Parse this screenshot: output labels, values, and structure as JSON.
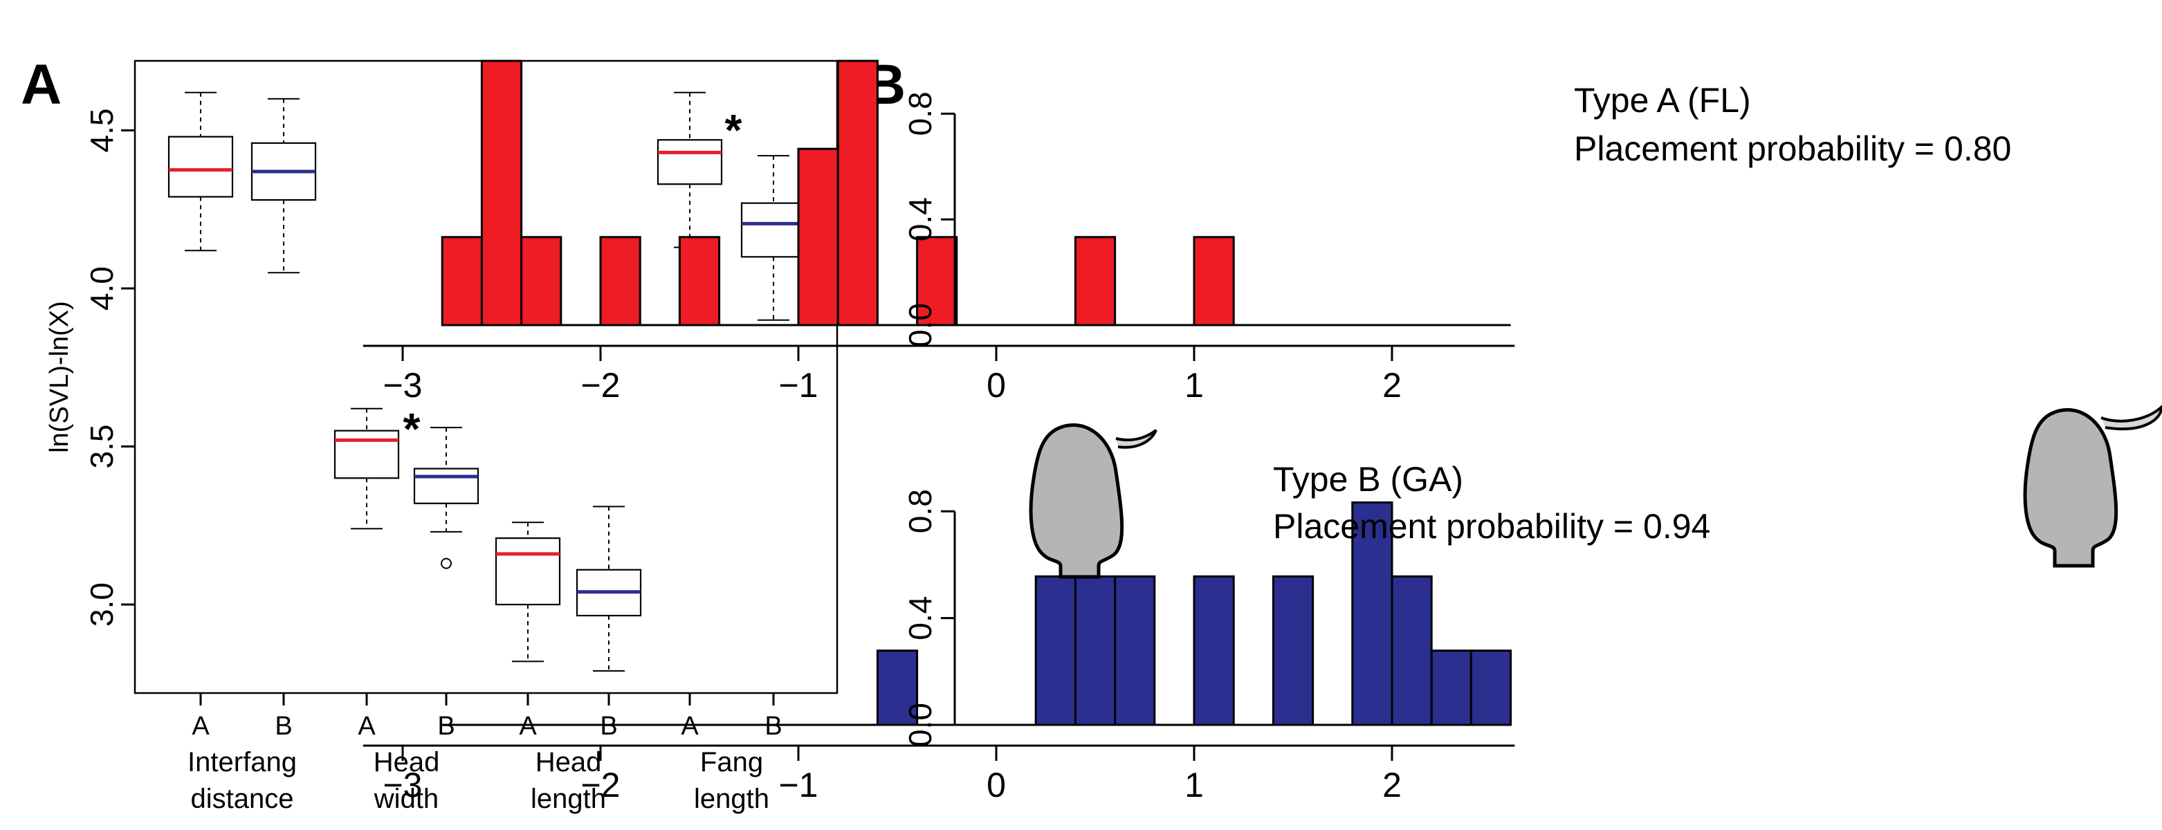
{
  "panels": {
    "a_letter": "A",
    "b_letter": "B"
  },
  "chart_data": [
    {
      "type": "box",
      "ylabel": "ln(SVL)-ln(X)",
      "ylim": [
        2.72,
        4.72
      ],
      "yticks": [
        3.0,
        3.5,
        4.0,
        4.5
      ],
      "ytick_labels": [
        "3.0",
        "3.5",
        "4.0",
        "4.5"
      ],
      "median_colors": {
        "A": "#e8202a",
        "B": "#2b2f8f"
      },
      "groups": [
        {
          "label_line1": "Interfang",
          "label_line2": "distance",
          "significance": ""
        },
        {
          "label_line1": "Head",
          "label_line2": "width",
          "significance": "*"
        },
        {
          "label_line1": "Head",
          "label_line2": "length",
          "significance": ""
        },
        {
          "label_line1": "Fang",
          "label_line2": "length",
          "significance": "*"
        }
      ],
      "boxes": [
        {
          "group": 0,
          "category": "A",
          "min": 4.12,
          "q1": 4.29,
          "median": 4.375,
          "q3": 4.48,
          "max": 4.62,
          "outliers": []
        },
        {
          "group": 0,
          "category": "B",
          "min": 4.05,
          "q1": 4.28,
          "median": 4.37,
          "q3": 4.46,
          "max": 4.6,
          "outliers": []
        },
        {
          "group": 1,
          "category": "A",
          "min": 3.24,
          "q1": 3.4,
          "median": 3.52,
          "q3": 3.55,
          "max": 3.62,
          "outliers": []
        },
        {
          "group": 1,
          "category": "B",
          "min": 3.23,
          "q1": 3.32,
          "median": 3.405,
          "q3": 3.43,
          "max": 3.56,
          "outliers": [
            3.13
          ]
        },
        {
          "group": 2,
          "category": "A",
          "min": 2.82,
          "q1": 3.0,
          "median": 3.16,
          "q3": 3.21,
          "max": 3.26,
          "outliers": []
        },
        {
          "group": 2,
          "category": "B",
          "min": 2.79,
          "q1": 2.965,
          "median": 3.04,
          "q3": 3.11,
          "max": 3.31,
          "outliers": []
        },
        {
          "group": 3,
          "category": "A",
          "min": 4.13,
          "q1": 4.33,
          "median": 4.43,
          "q3": 4.47,
          "max": 4.62,
          "outliers": [
            4.05
          ]
        },
        {
          "group": 3,
          "category": "B",
          "min": 3.9,
          "q1": 4.1,
          "median": 4.205,
          "q3": 4.27,
          "max": 4.42,
          "outliers": []
        }
      ]
    },
    {
      "type": "bar",
      "title_line1": "Type A (FL)",
      "title_line2": "Placement probability = 0.80",
      "color": "#ee1c25",
      "bin_width": 0.2,
      "xlim": [
        -3.2,
        2.62
      ],
      "xticks": [
        -3,
        -2,
        -1,
        0,
        1,
        2
      ],
      "xtick_labels": [
        "−3",
        "−2",
        "−1",
        "0",
        "1",
        "2"
      ],
      "ylim": [
        0,
        1.0
      ],
      "yticks": [
        0.0,
        0.4,
        0.8
      ],
      "ytick_labels": [
        "0.0",
        "0.4",
        "0.8"
      ],
      "baseline": [
        -2.8,
        2.6
      ],
      "bins": [
        {
          "x0": -2.8,
          "value": 0.333
        },
        {
          "x0": -2.6,
          "value": 1.0
        },
        {
          "x0": -2.4,
          "value": 0.333
        },
        {
          "x0": -2.0,
          "value": 0.333
        },
        {
          "x0": -1.6,
          "value": 0.333
        },
        {
          "x0": -1.0,
          "value": 0.667
        },
        {
          "x0": -0.8,
          "value": 1.0
        },
        {
          "x0": -0.4,
          "value": 0.333
        },
        {
          "x0": 0.4,
          "value": 0.333
        },
        {
          "x0": 1.0,
          "value": 0.333
        }
      ]
    },
    {
      "type": "bar",
      "title_line1": "Type B (GA)",
      "title_line2": "Placement probability = 0.94",
      "color": "#2b2f8f",
      "bin_width": 0.2,
      "xlim": [
        -3.2,
        2.62
      ],
      "xticks": [
        -3,
        -2,
        -1,
        0,
        1,
        2
      ],
      "xtick_labels": [
        "−3",
        "−2",
        "−1",
        "0",
        "1",
        "2"
      ],
      "ylim": [
        0,
        1.0
      ],
      "yticks": [
        0.0,
        0.4,
        0.8
      ],
      "ytick_labels": [
        "0.0",
        "0.4",
        "0.8"
      ],
      "baseline": [
        -2.8,
        2.6
      ],
      "bins": [
        {
          "x0": -0.6,
          "value": 0.278
        },
        {
          "x0": 0.2,
          "value": 0.556
        },
        {
          "x0": 0.4,
          "value": 0.556
        },
        {
          "x0": 0.6,
          "value": 0.556
        },
        {
          "x0": 1.0,
          "value": 0.556
        },
        {
          "x0": 1.4,
          "value": 0.556
        },
        {
          "x0": 1.8,
          "value": 0.833
        },
        {
          "x0": 2.0,
          "value": 0.556
        },
        {
          "x0": 2.2,
          "value": 0.278
        },
        {
          "x0": 2.4,
          "value": 0.278
        }
      ]
    }
  ],
  "icons": {
    "type_a": "snake-head-short-fang-icon",
    "type_b": "snake-head-long-fang-icon"
  }
}
